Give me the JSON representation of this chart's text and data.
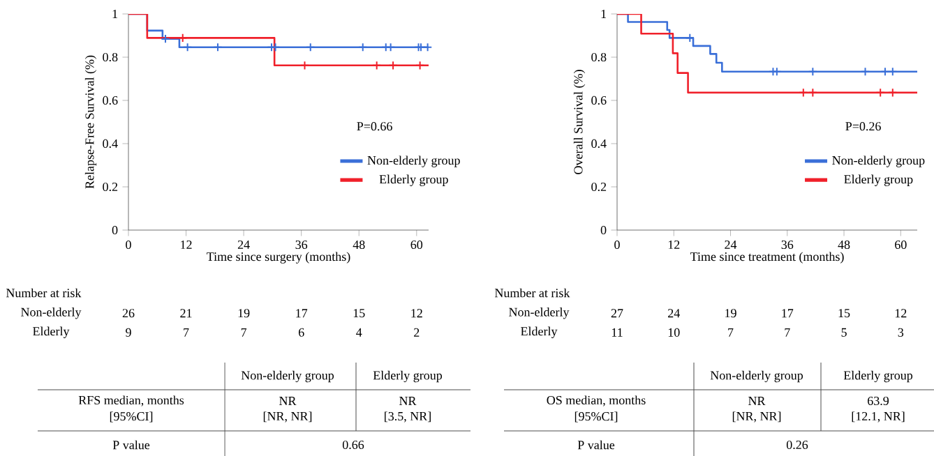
{
  "chart_data": [
    {
      "type": "step",
      "xlabel": "Time since surgery (months)",
      "ylabel": "Relapse-Free Survival (%)",
      "xlim": [
        0,
        62.5
      ],
      "ylim": [
        0,
        1
      ],
      "xticks": [
        0,
        12,
        24,
        36,
        48,
        60
      ],
      "yticks": [
        0,
        0.2,
        0.4,
        0.6,
        0.8,
        1
      ],
      "legend": "bottom right",
      "series": [
        {
          "type": "step",
          "name": "Non-elderly group",
          "color": "#3a6fd8",
          "x": [
            0,
            3.9,
            7.1,
            10.6,
            62.5
          ],
          "values": [
            1,
            0.923,
            0.885,
            0.846,
            0.846
          ]
        },
        {
          "type": "step",
          "name": "Elderly group",
          "color": "#f0202a",
          "x": [
            0,
            3.9,
            30.4,
            62.5
          ],
          "values": [
            1,
            0.889,
            0.762,
            0.762
          ]
        },
        {
          "type": "scatter",
          "marker": "cross",
          "color": "#3a6fd8",
          "x": [
            7.7,
            12.3,
            18.6,
            29.8,
            30.6,
            37.9,
            48.8,
            53.6,
            54.6,
            60.4,
            60.9,
            62.3
          ],
          "values": [
            0.885,
            0.846,
            0.846,
            0.846,
            0.846,
            0.846,
            0.846,
            0.846,
            0.846,
            0.846,
            0.846,
            0.846
          ]
        },
        {
          "type": "scatter",
          "marker": "cross",
          "color": "#f0202a",
          "x": [
            11.3,
            36.7,
            51.7,
            55.1,
            60.7
          ],
          "values": [
            0.889,
            0.762,
            0.762,
            0.762,
            0.762
          ]
        }
      ],
      "annotations": [
        "P=0.66",
        "Number at risk",
        "Non-elderly",
        "26",
        "21",
        "19",
        "17",
        "15",
        "12",
        "Elderly",
        "9",
        "7",
        "7",
        "6",
        "4",
        "2",
        "Non-elderly group",
        "Elderly group",
        "RFS median, months",
        "NR",
        "NR",
        "[95%CI]",
        "[NR, NR]",
        "[3.5, NR]",
        "P value",
        "0.66"
      ]
    },
    {
      "type": "step",
      "xlabel": "Time since treatment (months)",
      "ylabel": "Overall Survival (%)",
      "xlim": [
        0,
        63.5
      ],
      "ylim": [
        0,
        1
      ],
      "xticks": [
        0,
        12,
        24,
        36,
        48,
        60
      ],
      "yticks": [
        0,
        0.2,
        0.4,
        0.6,
        0.8,
        1
      ],
      "legend": "bottom right",
      "series": [
        {
          "type": "step",
          "name": "Non-elderly group",
          "color": "#3a6fd8",
          "x": [
            0,
            2.3,
            10.6,
            11.1,
            16.1,
            19.7,
            21,
            22.2,
            63.5
          ],
          "values": [
            1,
            0.963,
            0.926,
            0.889,
            0.852,
            0.815,
            0.774,
            0.733,
            0.733
          ]
        },
        {
          "type": "step",
          "name": "Elderly group",
          "color": "#f0202a",
          "x": [
            0,
            5.1,
            11.8,
            12.8,
            15,
            63.5
          ],
          "values": [
            1,
            0.909,
            0.818,
            0.727,
            0.636,
            0.636
          ]
        },
        {
          "type": "scatter",
          "marker": "cross",
          "color": "#3a6fd8",
          "x": [
            15.4,
            33,
            33.8,
            41.4,
            52.5,
            56.7,
            58.3
          ],
          "values": [
            0.889,
            0.733,
            0.733,
            0.733,
            0.733,
            0.733,
            0.733
          ]
        },
        {
          "type": "scatter",
          "marker": "cross",
          "color": "#f0202a",
          "x": [
            39.4,
            41.4,
            55.7,
            58.3
          ],
          "values": [
            0.636,
            0.636,
            0.636,
            0.636
          ]
        }
      ],
      "annotations": [
        "P=0.26",
        "Number at risk",
        "Non-elderly",
        "27",
        "24",
        "19",
        "17",
        "15",
        "12",
        "Elderly",
        "11",
        "10",
        "7",
        "7",
        "5",
        "3",
        "Non-elderly group",
        "Elderly group",
        "OS median, months",
        "NR",
        "63.9",
        "[95%CI]",
        "[NR, NR]",
        "[12.1, NR]",
        "P value",
        "0.26"
      ]
    }
  ]
}
